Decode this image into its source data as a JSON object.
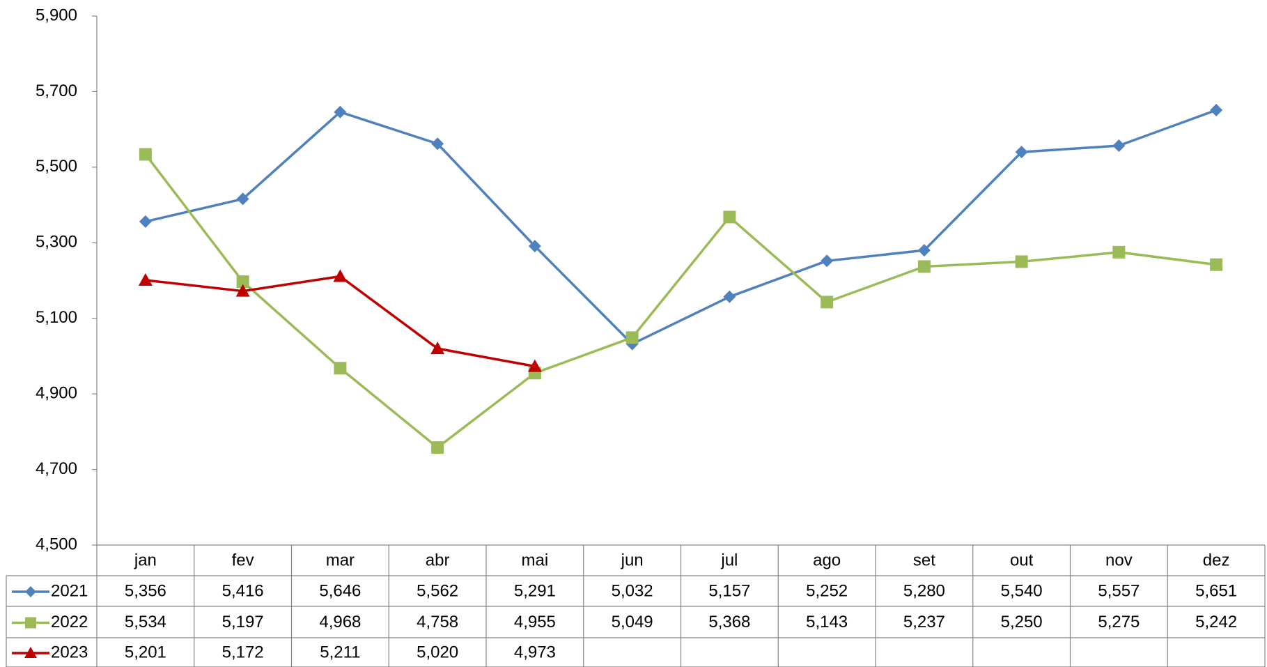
{
  "chart_data": {
    "type": "line",
    "categories": [
      "jan",
      "fev",
      "mar",
      "abr",
      "mai",
      "jun",
      "jul",
      "ago",
      "set",
      "out",
      "nov",
      "dez"
    ],
    "series": [
      {
        "name": "2021",
        "color": "#4f81bd",
        "marker": "diamond",
        "values": [
          5356,
          5416,
          5646,
          5562,
          5291,
          5032,
          5157,
          5252,
          5280,
          5540,
          5557,
          5651
        ],
        "value_labels": [
          "5,356",
          "5,416",
          "5,646",
          "5,562",
          "5,291",
          "5,032",
          "5,157",
          "5,252",
          "5,280",
          "5,540",
          "5,557",
          "5,651"
        ]
      },
      {
        "name": "2022",
        "color": "#9bbb59",
        "marker": "square",
        "values": [
          5534,
          5197,
          4968,
          4758,
          4955,
          5049,
          5368,
          5143,
          5237,
          5250,
          5275,
          5242
        ],
        "value_labels": [
          "5,534",
          "5,197",
          "4,968",
          "4,758",
          "4,955",
          "5,049",
          "5,368",
          "5,143",
          "5,237",
          "5,250",
          "5,275",
          "5,242"
        ]
      },
      {
        "name": "2023",
        "color": "#c00000",
        "marker": "triangle",
        "values": [
          5201,
          5172,
          5211,
          5020,
          4973,
          null,
          null,
          null,
          null,
          null,
          null,
          null
        ],
        "value_labels": [
          "5,201",
          "5,172",
          "5,211",
          "5,020",
          "4,973",
          null,
          null,
          null,
          null,
          null,
          null,
          null
        ]
      }
    ],
    "ylim": [
      4500,
      5900
    ],
    "yticks": [
      {
        "value": 4500,
        "label": "4,500"
      },
      {
        "value": 4700,
        "label": "4,700"
      },
      {
        "value": 4900,
        "label": "4,900"
      },
      {
        "value": 5100,
        "label": "5,100"
      },
      {
        "value": 5300,
        "label": "5,300"
      },
      {
        "value": 5500,
        "label": "5,500"
      },
      {
        "value": 5700,
        "label": "5,700"
      },
      {
        "value": 5900,
        "label": "5,900"
      }
    ],
    "grid": false
  }
}
